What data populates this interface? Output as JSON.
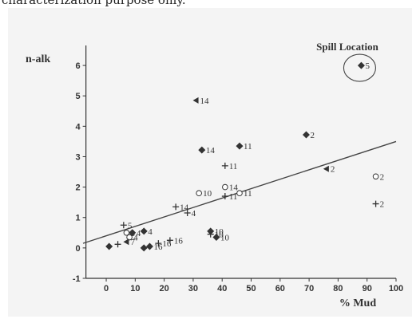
{
  "page": {
    "top_text": "characterization purpose only."
  },
  "chart_data": {
    "type": "scatter",
    "title": "",
    "xlabel": "% Mud",
    "ylabel": "n-alk",
    "xlim": [
      -8,
      100
    ],
    "ylim": [
      -1,
      6.5
    ],
    "xticks": [
      0,
      10,
      20,
      30,
      40,
      50,
      60,
      70,
      80,
      90,
      100
    ],
    "yticks": [
      -1,
      0,
      1,
      2,
      3,
      4,
      5,
      6
    ],
    "grid": false,
    "legend": "none",
    "annotation": {
      "text": "Spill Location",
      "circled_point": {
        "x": 88,
        "y": 6.0,
        "label": "5"
      }
    },
    "trendline": {
      "points": [
        [
          -8,
          0.15
        ],
        [
          100,
          3.5
        ]
      ]
    },
    "points": [
      {
        "x": 88,
        "y": 6.0,
        "label": "5",
        "marker": "diamond"
      },
      {
        "x": 31,
        "y": 4.85,
        "label": "14",
        "marker": "triangle"
      },
      {
        "x": 33,
        "y": 3.22,
        "label": "14",
        "marker": "diamond"
      },
      {
        "x": 46,
        "y": 3.35,
        "label": "11",
        "marker": "diamond"
      },
      {
        "x": 69,
        "y": 3.72,
        "label": "2",
        "marker": "diamond"
      },
      {
        "x": 41,
        "y": 2.7,
        "label": "11",
        "marker": "plus"
      },
      {
        "x": 76,
        "y": 2.6,
        "label": "2",
        "marker": "triangle"
      },
      {
        "x": 93,
        "y": 2.35,
        "label": "2",
        "marker": "circle"
      },
      {
        "x": 93,
        "y": 1.45,
        "label": "2",
        "marker": "plus"
      },
      {
        "x": 32,
        "y": 1.8,
        "label": "10",
        "marker": "circle"
      },
      {
        "x": 41,
        "y": 2.0,
        "label": "14",
        "marker": "circle"
      },
      {
        "x": 46,
        "y": 1.8,
        "label": "11",
        "marker": "circle"
      },
      {
        "x": 41,
        "y": 1.7,
        "label": "11",
        "marker": "plus"
      },
      {
        "x": 24,
        "y": 1.35,
        "label": "14",
        "marker": "plus"
      },
      {
        "x": 28,
        "y": 1.15,
        "label": "4",
        "marker": "plus"
      },
      {
        "x": 6,
        "y": 0.75,
        "label": "5",
        "marker": "plus"
      },
      {
        "x": 7,
        "y": 0.5,
        "label": "5",
        "marker": "circle"
      },
      {
        "x": 9,
        "y": 0.5,
        "label": "4",
        "marker": "diamond"
      },
      {
        "x": 8,
        "y": 0.35,
        "label": "4",
        "marker": "circle"
      },
      {
        "x": 13,
        "y": 0.55,
        "label": "4",
        "marker": "diamond"
      },
      {
        "x": 7,
        "y": 0.2,
        "label": "7",
        "marker": "triangle"
      },
      {
        "x": 4,
        "y": 0.12,
        "label": "",
        "marker": "plus"
      },
      {
        "x": 1,
        "y": 0.05,
        "label": "",
        "marker": "diamond"
      },
      {
        "x": 13,
        "y": 0.0,
        "label": "",
        "marker": "diamond"
      },
      {
        "x": 15,
        "y": 0.05,
        "label": "16",
        "marker": "diamond"
      },
      {
        "x": 18,
        "y": 0.15,
        "label": "16",
        "marker": "plus"
      },
      {
        "x": 22,
        "y": 0.25,
        "label": "16",
        "marker": "plus"
      },
      {
        "x": 36,
        "y": 0.55,
        "label": "10",
        "marker": "diamond"
      },
      {
        "x": 36,
        "y": 0.45,
        "label": "10",
        "marker": "plus"
      },
      {
        "x": 38,
        "y": 0.35,
        "label": "10",
        "marker": "diamond"
      }
    ]
  }
}
